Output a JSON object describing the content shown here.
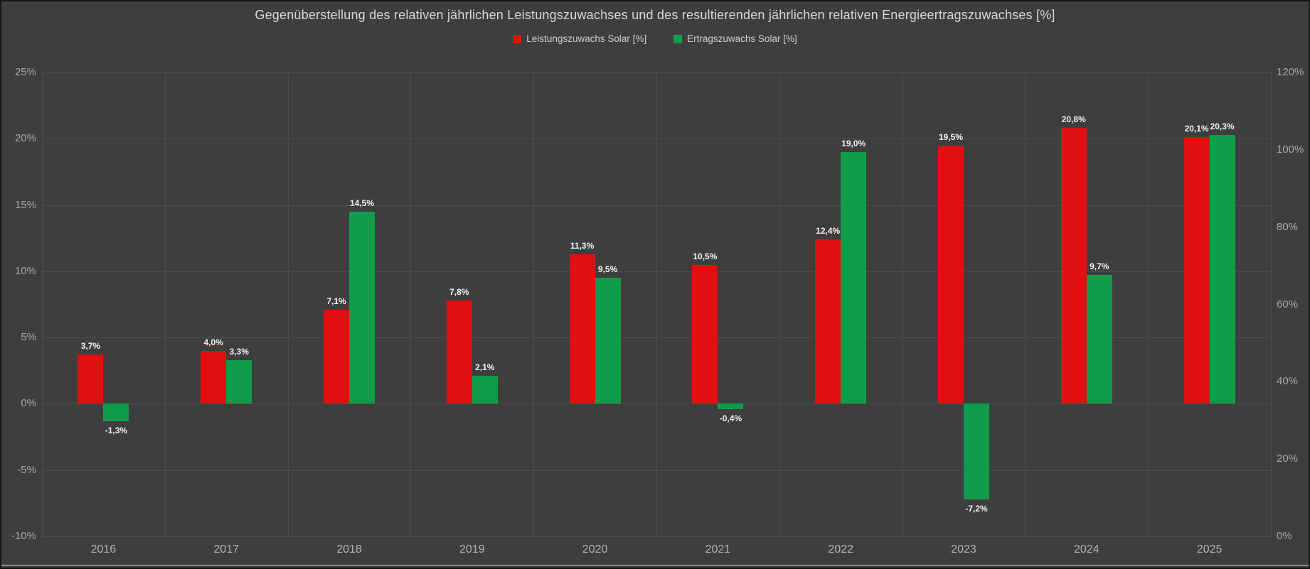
{
  "window": {
    "background_color": "#3e3e3e",
    "border_color": "#141414"
  },
  "chart_data": {
    "type": "bar",
    "title": "Gegenüberstellung des relativen jährlichen Leistungszuwachses und des resultierenden jährlichen relativen Energieertragszuwachses [%]",
    "categories": [
      "2016",
      "2017",
      "2018",
      "2019",
      "2020",
      "2021",
      "2022",
      "2023",
      "2024",
      "2025"
    ],
    "series": [
      {
        "name": "Leistungszuwachs Solar [%]",
        "color": "#e00f10",
        "values": [
          3.7,
          4.0,
          7.1,
          7.8,
          11.3,
          10.5,
          12.4,
          19.5,
          20.8,
          20.1
        ],
        "labels": [
          "3,7%",
          "4,0%",
          "7,1%",
          "7,8%",
          "11,3%",
          "10,5%",
          "12,4%",
          "19,5%",
          "20,8%",
          "20,1%"
        ]
      },
      {
        "name": "Ertragszuwachs Solar [%]",
        "color": "#109c4b",
        "values": [
          -1.3,
          3.3,
          14.5,
          2.1,
          9.5,
          -0.4,
          19.0,
          -7.2,
          9.7,
          20.3
        ],
        "labels": [
          "-1,3%",
          "3,3%",
          "14,5%",
          "2,1%",
          "9,5%",
          "-0,4%",
          "19,0%",
          "-7,2%",
          "9,7%",
          "20,3%"
        ]
      }
    ],
    "left_axis": {
      "min": -10,
      "max": 25,
      "step": 5,
      "ticks": [
        "25%",
        "20%",
        "15%",
        "10%",
        "5%",
        "0%",
        "-5%",
        "-10%"
      ]
    },
    "right_axis": {
      "min": 0,
      "max": 120,
      "step": 20,
      "ticks": [
        "120%",
        "100%",
        "80%",
        "60%",
        "40%",
        "20%",
        "0%"
      ]
    },
    "grid": true,
    "legend_position": "top",
    "colors": {
      "grid": "#4d4d4d",
      "axis_text": "#a8a8a8",
      "year_text": "#b3b3b3",
      "title_text": "#d9d9d9",
      "legend_text": "#cfcfcf",
      "data_label_text": "#f2f2f2"
    }
  }
}
